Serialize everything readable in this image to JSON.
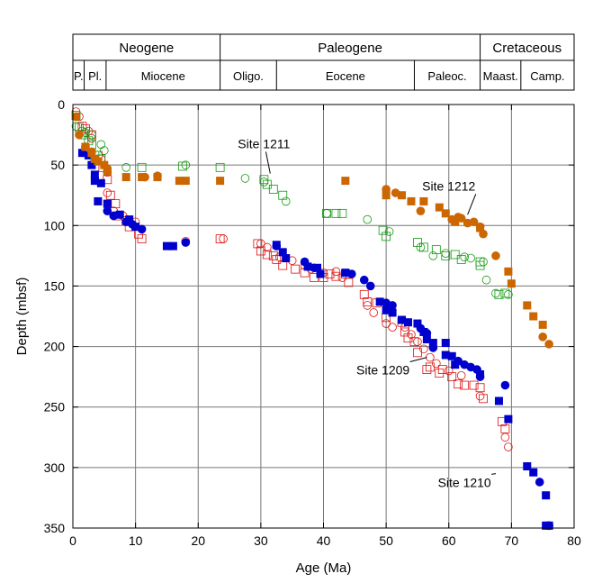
{
  "chart_data": {
    "type": "scatter",
    "xlabel": "Age (Ma)",
    "ylabel": "Depth (mbsf)",
    "xlim": [
      0,
      80
    ],
    "ylim": [
      0,
      350
    ],
    "y_inverted": true,
    "xticks": [
      "0",
      "10",
      "20",
      "30",
      "40",
      "50",
      "60",
      "70",
      "80"
    ],
    "yticks": [
      "0",
      "50",
      "100",
      "150",
      "200",
      "250",
      "300",
      "350"
    ],
    "grid": true,
    "timescale": {
      "periods": [
        {
          "label": "Neogene",
          "start": 0,
          "end": 23.5
        },
        {
          "label": "Paleogene",
          "start": 23.5,
          "end": 65
        },
        {
          "label": "Cretaceous",
          "start": 65,
          "end": 80
        }
      ],
      "epochs": [
        {
          "label": "P.",
          "start": 0,
          "end": 1.8
        },
        {
          "label": "Pl.",
          "start": 1.8,
          "end": 5.3
        },
        {
          "label": "Miocene",
          "start": 5.3,
          "end": 23.5
        },
        {
          "label": "Oligo.",
          "start": 23.5,
          "end": 32.5
        },
        {
          "label": "Eocene",
          "start": 32.5,
          "end": 54.5
        },
        {
          "label": "Paleoc.",
          "start": 54.5,
          "end": 65
        },
        {
          "label": "Maast.",
          "start": 65,
          "end": 71.5
        },
        {
          "label": "Camp.",
          "start": 71.5,
          "end": 80
        }
      ]
    },
    "colors": {
      "site_1209": "#dd1111",
      "site_1210": "#0000cc",
      "site_1211": "#119911",
      "site_1212": "#cc6600"
    },
    "annotations": [
      {
        "text": "Site 1211",
        "x": 30.5,
        "y": 36,
        "arrow_to": [
          31.5,
          57
        ]
      },
      {
        "text": "Site 1212",
        "x": 60,
        "y": 71,
        "arrow_to": [
          63,
          91
        ]
      },
      {
        "text": "Site 1209",
        "x": 49.5,
        "y": 223,
        "arrow_to": [
          56.5,
          209
        ]
      },
      {
        "text": "Site 1210",
        "x": 62.5,
        "y": 316,
        "arrow_to": [
          67.5,
          305
        ]
      }
    ],
    "series": [
      {
        "site": "1209",
        "marker": "open-square",
        "color": "#dd1111",
        "points": [
          [
            1.5,
            18
          ],
          [
            2.0,
            20
          ],
          [
            3.0,
            25
          ],
          [
            4.0,
            42
          ],
          [
            4.8,
            52
          ],
          [
            5.5,
            62
          ],
          [
            6.0,
            75
          ],
          [
            6.8,
            82
          ],
          [
            7.0,
            92
          ],
          [
            8.5,
            96
          ],
          [
            9.0,
            101
          ],
          [
            10.5,
            107
          ],
          [
            11.0,
            111
          ],
          [
            23.5,
            111
          ],
          [
            29.5,
            115
          ],
          [
            30.0,
            121
          ],
          [
            31.0,
            124
          ],
          [
            32.0,
            125
          ],
          [
            32.5,
            128
          ],
          [
            33.5,
            133
          ],
          [
            35.5,
            136
          ],
          [
            37.0,
            139
          ],
          [
            38.5,
            143
          ],
          [
            40.0,
            143
          ],
          [
            41.0,
            140
          ],
          [
            42.0,
            142
          ],
          [
            43.5,
            140
          ],
          [
            44.0,
            147
          ],
          [
            46.5,
            157
          ],
          [
            47.0,
            163
          ],
          [
            48.5,
            164
          ],
          [
            50.0,
            176
          ],
          [
            52.5,
            180
          ],
          [
            53.0,
            188
          ],
          [
            53.5,
            193
          ],
          [
            54.5,
            196
          ],
          [
            55.0,
            205
          ],
          [
            56.5,
            219
          ],
          [
            57.0,
            217
          ],
          [
            58.5,
            222
          ],
          [
            59.0,
            219
          ],
          [
            60.5,
            225
          ],
          [
            61.5,
            231
          ],
          [
            62.5,
            232
          ],
          [
            64.0,
            232
          ],
          [
            65.0,
            234
          ],
          [
            65.5,
            243
          ],
          [
            68.5,
            262
          ],
          [
            69.0,
            268
          ]
        ]
      },
      {
        "site": "1209",
        "marker": "open-circle",
        "color": "#dd1111",
        "points": [
          [
            0.5,
            6
          ],
          [
            1.0,
            10
          ],
          [
            2.5,
            22
          ],
          [
            3.0,
            28
          ],
          [
            4.5,
            45
          ],
          [
            5.5,
            56
          ],
          [
            5.5,
            73
          ],
          [
            6.5,
            88
          ],
          [
            8.0,
            92
          ],
          [
            10.0,
            97
          ],
          [
            18.0,
            113
          ],
          [
            24.0,
            111
          ],
          [
            30.0,
            115
          ],
          [
            31.0,
            118
          ],
          [
            33.0,
            126
          ],
          [
            35.0,
            129
          ],
          [
            37.0,
            133
          ],
          [
            38.0,
            136
          ],
          [
            40.0,
            139
          ],
          [
            42.0,
            138
          ],
          [
            43.0,
            143
          ],
          [
            47.0,
            166
          ],
          [
            48.0,
            172
          ],
          [
            50.0,
            181
          ],
          [
            51.0,
            184
          ],
          [
            53.0,
            184
          ],
          [
            54.0,
            190
          ],
          [
            55.0,
            196
          ],
          [
            56.0,
            202
          ],
          [
            57.0,
            209
          ],
          [
            58.0,
            214
          ],
          [
            60.0,
            220
          ],
          [
            62.0,
            224
          ],
          [
            65.0,
            241
          ],
          [
            69.0,
            275
          ],
          [
            69.5,
            283
          ]
        ]
      },
      {
        "site": "1210",
        "marker": "filled-square",
        "color": "#0000cc",
        "points": [
          [
            1.5,
            40
          ],
          [
            2.5,
            42
          ],
          [
            3.0,
            50
          ],
          [
            3.5,
            58
          ],
          [
            3.5,
            63
          ],
          [
            4.5,
            65
          ],
          [
            4.0,
            80
          ],
          [
            5.5,
            82
          ],
          [
            7.5,
            91
          ],
          [
            9.0,
            95
          ],
          [
            10.0,
            101
          ],
          [
            15.0,
            117
          ],
          [
            16.0,
            117
          ],
          [
            32.5,
            116
          ],
          [
            33.5,
            122
          ],
          [
            34.0,
            127
          ],
          [
            37.5,
            134
          ],
          [
            39.0,
            135
          ],
          [
            39.5,
            140
          ],
          [
            43.5,
            139
          ],
          [
            49.0,
            163
          ],
          [
            50.0,
            170
          ],
          [
            51.0,
            172
          ],
          [
            52.5,
            178
          ],
          [
            53.5,
            180
          ],
          [
            55.0,
            181
          ],
          [
            56.0,
            188
          ],
          [
            56.5,
            194
          ],
          [
            57.5,
            197
          ],
          [
            59.5,
            197
          ],
          [
            59.5,
            207
          ],
          [
            60.5,
            208
          ],
          [
            61.0,
            215
          ],
          [
            65.0,
            223
          ],
          [
            68.0,
            245
          ],
          [
            69.5,
            260
          ],
          [
            72.5,
            299
          ],
          [
            73.5,
            304
          ],
          [
            75.5,
            323
          ],
          [
            75.5,
            348
          ],
          [
            76.0,
            348
          ]
        ]
      },
      {
        "site": "1210",
        "marker": "filled-circle",
        "color": "#0000cc",
        "points": [
          [
            2.0,
            35
          ],
          [
            3.5,
            47
          ],
          [
            5.5,
            88
          ],
          [
            6.5,
            92
          ],
          [
            8.5,
            97
          ],
          [
            9.5,
            99
          ],
          [
            11.0,
            103
          ],
          [
            18.0,
            114
          ],
          [
            32.5,
            117
          ],
          [
            37.0,
            130
          ],
          [
            38.5,
            135
          ],
          [
            44.5,
            140
          ],
          [
            46.5,
            145
          ],
          [
            47.5,
            150
          ],
          [
            50.0,
            164
          ],
          [
            51.0,
            166
          ],
          [
            55.5,
            185
          ],
          [
            56.5,
            189
          ],
          [
            57.5,
            201
          ],
          [
            61.5,
            212
          ],
          [
            62.5,
            215
          ],
          [
            63.5,
            217
          ],
          [
            64.5,
            219
          ],
          [
            65.0,
            225
          ],
          [
            69.0,
            232
          ],
          [
            74.5,
            312
          ],
          [
            76.0,
            348
          ]
        ]
      },
      {
        "site": "1211",
        "marker": "open-square",
        "color": "#119911",
        "points": [
          [
            0.5,
            9
          ],
          [
            1.0,
            19
          ],
          [
            1.5,
            25
          ],
          [
            2.5,
            30
          ],
          [
            3.0,
            33
          ],
          [
            3.5,
            42
          ],
          [
            4.5,
            45
          ],
          [
            11.0,
            52
          ],
          [
            17.5,
            51
          ],
          [
            23.5,
            52
          ],
          [
            30.5,
            62
          ],
          [
            31.0,
            66
          ],
          [
            32.0,
            70
          ],
          [
            33.5,
            75
          ],
          [
            40.5,
            90
          ],
          [
            42.0,
            90
          ],
          [
            43.0,
            90
          ],
          [
            49.5,
            104
          ],
          [
            50.0,
            109
          ],
          [
            55.0,
            114
          ],
          [
            56.0,
            118
          ],
          [
            58.0,
            120
          ],
          [
            59.5,
            125
          ],
          [
            61.0,
            124
          ],
          [
            62.0,
            128
          ],
          [
            65.0,
            130
          ],
          [
            65.0,
            133
          ],
          [
            68.0,
            157
          ],
          [
            69.0,
            156
          ]
        ]
      },
      {
        "site": "1211",
        "marker": "open-circle",
        "color": "#119911",
        "points": [
          [
            0.5,
            18
          ],
          [
            1.5,
            22
          ],
          [
            2.0,
            23
          ],
          [
            3.0,
            25
          ],
          [
            4.5,
            33
          ],
          [
            5.0,
            38
          ],
          [
            8.5,
            52
          ],
          [
            18.0,
            50
          ],
          [
            27.5,
            61
          ],
          [
            30.5,
            64
          ],
          [
            34.0,
            80
          ],
          [
            40.5,
            90
          ],
          [
            47.0,
            95
          ],
          [
            50.5,
            105
          ],
          [
            55.5,
            118
          ],
          [
            57.5,
            125
          ],
          [
            59.5,
            123
          ],
          [
            62.5,
            126
          ],
          [
            63.5,
            127
          ],
          [
            65.5,
            130
          ],
          [
            66.0,
            145
          ],
          [
            67.5,
            156
          ],
          [
            69.5,
            157
          ]
        ]
      },
      {
        "site": "1212",
        "marker": "filled-square",
        "color": "#cc6600",
        "points": [
          [
            2.0,
            35
          ],
          [
            3.0,
            40
          ],
          [
            3.5,
            45
          ],
          [
            4.0,
            47
          ],
          [
            5.0,
            50
          ],
          [
            5.5,
            55
          ],
          [
            8.5,
            60
          ],
          [
            11.0,
            60
          ],
          [
            13.5,
            60
          ],
          [
            17.0,
            63
          ],
          [
            18.0,
            63
          ],
          [
            23.5,
            63
          ],
          [
            43.5,
            63
          ],
          [
            50.0,
            75
          ],
          [
            52.5,
            75
          ],
          [
            54.0,
            80
          ],
          [
            56.0,
            80
          ],
          [
            58.5,
            85
          ],
          [
            59.5,
            90
          ],
          [
            61.0,
            97
          ],
          [
            65.0,
            102
          ],
          [
            69.5,
            138
          ],
          [
            70.0,
            148
          ],
          [
            72.5,
            166
          ],
          [
            73.5,
            175
          ],
          [
            75.0,
            182
          ]
        ]
      },
      {
        "site": "1212",
        "marker": "filled-circle",
        "color": "#cc6600",
        "points": [
          [
            0.5,
            10
          ],
          [
            1.0,
            25
          ],
          [
            2.0,
            35
          ],
          [
            3.0,
            39
          ],
          [
            5.5,
            53
          ],
          [
            11.5,
            60
          ],
          [
            13.5,
            59
          ],
          [
            50.0,
            70
          ],
          [
            51.5,
            73
          ],
          [
            55.5,
            88
          ],
          [
            60.5,
            95
          ],
          [
            61.5,
            93
          ],
          [
            62.0,
            94
          ],
          [
            63.0,
            98
          ],
          [
            64.0,
            97
          ],
          [
            65.0,
            101
          ],
          [
            65.5,
            107
          ],
          [
            67.5,
            125
          ],
          [
            75.0,
            192
          ],
          [
            76.0,
            198
          ]
        ]
      }
    ]
  }
}
